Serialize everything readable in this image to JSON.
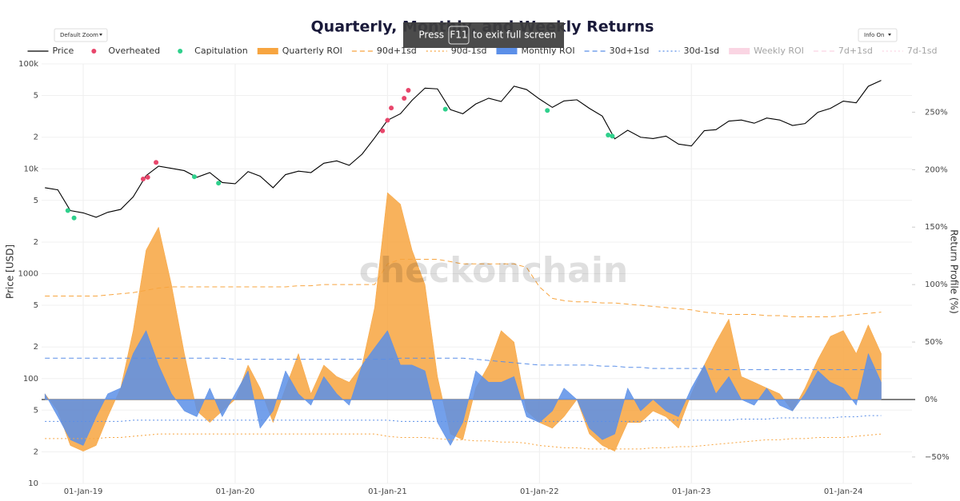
{
  "chart_data": {
    "type": "returns",
    "title": "Quarterly, Monthly, and Weekly Returns",
    "watermark": "checkonchain",
    "ui": {
      "zoom_menu": "Default Zoom",
      "info_menu": "Info On",
      "fullscreen_notice": {
        "before": "Press",
        "key": "F11",
        "after": "to exit full screen"
      }
    },
    "y_label": "Price [USD]",
    "y2_label": "Return Profile (%)",
    "log_y": true,
    "grid": true,
    "xlim": [
      "2018-09-23",
      "2024-06-14"
    ],
    "xticks": [
      {
        "value": "2019-01-01",
        "label": "01-Jan-19"
      },
      {
        "value": "2020-01-01",
        "label": "01-Jan-20"
      },
      {
        "value": "2021-01-01",
        "label": "01-Jan-21"
      },
      {
        "value": "2022-01-01",
        "label": "01-Jan-22"
      },
      {
        "value": "2023-01-01",
        "label": "01-Jan-23"
      },
      {
        "value": "2024-01-01",
        "label": "01-Jan-24"
      }
    ],
    "ylim": [
      10,
      100000
    ],
    "yticks": [
      {
        "value": 100000,
        "label": "100k"
      },
      {
        "value": 50000,
        "label": "5"
      },
      {
        "value": 20000,
        "label": "2"
      },
      {
        "value": 10000,
        "label": "10k"
      },
      {
        "value": 5000,
        "label": "5"
      },
      {
        "value": 2000,
        "label": "2"
      },
      1000,
      {
        "value": 500,
        "label": "5"
      },
      {
        "value": 200,
        "label": "2"
      },
      100,
      {
        "value": 50,
        "label": "5"
      },
      {
        "value": 20,
        "label": "2"
      },
      10
    ],
    "y2lim": [
      -73,
      292
    ],
    "y2ticks": [
      {
        "value": -50,
        "label": "−50%"
      },
      {
        "value": 0,
        "label": "0%"
      },
      {
        "value": 50,
        "label": "50%"
      },
      {
        "value": 100,
        "label": "100%"
      },
      {
        "value": 150,
        "label": "150%"
      },
      {
        "value": 200,
        "label": "200%"
      },
      {
        "value": 250,
        "label": "250%"
      }
    ],
    "x": [
      "2018-10-01",
      "2018-11-01",
      "2018-12-01",
      "2019-01-01",
      "2019-02-01",
      "2019-03-01",
      "2019-04-01",
      "2019-05-01",
      "2019-06-01",
      "2019-07-01",
      "2019-08-01",
      "2019-09-01",
      "2019-10-01",
      "2019-11-01",
      "2019-12-01",
      "2020-01-01",
      "2020-02-01",
      "2020-03-01",
      "2020-04-01",
      "2020-05-01",
      "2020-06-01",
      "2020-07-01",
      "2020-08-01",
      "2020-09-01",
      "2020-10-01",
      "2020-11-01",
      "2020-12-01",
      "2021-01-01",
      "2021-02-01",
      "2021-03-01",
      "2021-04-01",
      "2021-05-01",
      "2021-06-01",
      "2021-07-01",
      "2021-08-01",
      "2021-09-01",
      "2021-10-01",
      "2021-11-01",
      "2021-12-01",
      "2022-01-01",
      "2022-02-01",
      "2022-03-01",
      "2022-04-01",
      "2022-05-01",
      "2022-06-01",
      "2022-07-01",
      "2022-08-01",
      "2022-09-01",
      "2022-10-01",
      "2022-11-01",
      "2022-12-01",
      "2023-01-01",
      "2023-02-01",
      "2023-03-01",
      "2023-04-01",
      "2023-05-01",
      "2023-06-01",
      "2023-07-01",
      "2023-08-01",
      "2023-09-01",
      "2023-10-01",
      "2023-11-01",
      "2023-12-01",
      "2024-01-01",
      "2024-02-01",
      "2024-03-01",
      "2024-04-01"
    ],
    "series": [
      {
        "name": "Price",
        "kind": "line",
        "axis": "y",
        "color": "#000000",
        "values": [
          6600,
          6300,
          4000,
          3800,
          3450,
          3850,
          4100,
          5400,
          8600,
          10600,
          10100,
          9600,
          8300,
          9200,
          7400,
          7200,
          9400,
          8500,
          6600,
          8800,
          9500,
          9200,
          11300,
          11900,
          10800,
          13800,
          19700,
          29000,
          33500,
          45000,
          58800,
          57800,
          36700,
          33500,
          41500,
          47100,
          43800,
          61300,
          57000,
          46300,
          38500,
          44400,
          45500,
          37700,
          31800,
          19300,
          23300,
          20000,
          19400,
          20500,
          17200,
          16500,
          23100,
          23600,
          28500,
          29200,
          27200,
          30500,
          29200,
          25900,
          27000,
          34600,
          37700,
          44200,
          42600,
          61200,
          69700
        ]
      },
      {
        "name": "Overheated",
        "kind": "markers",
        "axis": "y",
        "color": "#e8466b",
        "x": [
          "2019-05-25",
          "2019-06-05",
          "2019-06-25",
          "2020-12-20",
          "2021-01-01",
          "2021-01-10",
          "2021-02-10",
          "2021-02-20"
        ],
        "values": [
          8000,
          8300,
          11500,
          23000,
          29000,
          38000,
          47000,
          56000
        ]
      },
      {
        "name": "Capitulation",
        "kind": "markers",
        "axis": "y",
        "color": "#2fd08c",
        "x": [
          "2018-11-25",
          "2018-12-10",
          "2019-09-25",
          "2019-11-22",
          "2021-05-20",
          "2022-01-20",
          "2022-06-15",
          "2022-06-25"
        ],
        "values": [
          4000,
          3400,
          8400,
          7300,
          37000,
          36000,
          21000,
          20500
        ]
      },
      {
        "name": "Quarterly ROI",
        "kind": "area",
        "axis": "y2",
        "color": "#f7a540",
        "values": [
          5,
          -10,
          -40,
          -45,
          -40,
          -15,
          10,
          60,
          130,
          150,
          100,
          40,
          -10,
          -20,
          -10,
          0,
          30,
          10,
          -20,
          10,
          40,
          5,
          30,
          20,
          15,
          30,
          80,
          180,
          170,
          130,
          100,
          20,
          -30,
          -35,
          10,
          30,
          60,
          50,
          -10,
          -20,
          -25,
          -15,
          0,
          -30,
          -40,
          -45,
          -20,
          -20,
          -10,
          -15,
          -25,
          5,
          30,
          50,
          70,
          20,
          15,
          10,
          5,
          -10,
          10,
          35,
          55,
          60,
          40,
          65,
          40
        ]
      },
      {
        "name": "90d+1sd",
        "kind": "line",
        "dash": "dash",
        "axis": "y2",
        "color": "#f7a540",
        "values": [
          90,
          90,
          90,
          90,
          90,
          91,
          92,
          93,
          95,
          97,
          98,
          98,
          98,
          98,
          98,
          98,
          98,
          98,
          98,
          98,
          99,
          99,
          100,
          100,
          100,
          100,
          100,
          118,
          122,
          122,
          122,
          122,
          120,
          118,
          118,
          118,
          118,
          118,
          115,
          98,
          88,
          86,
          85,
          85,
          84,
          84,
          83,
          82,
          81,
          80,
          79,
          78,
          76,
          75,
          74,
          74,
          74,
          73,
          73,
          72,
          72,
          72,
          72,
          73,
          74,
          75,
          76
        ]
      },
      {
        "name": "90d-1sd",
        "kind": "line",
        "dash": "dot",
        "axis": "y2",
        "color": "#f7a540",
        "values": [
          -34,
          -34,
          -34,
          -34,
          -34,
          -33,
          -33,
          -32,
          -31,
          -30,
          -30,
          -30,
          -30,
          -30,
          -30,
          -30,
          -30,
          -30,
          -30,
          -30,
          -30,
          -30,
          -30,
          -30,
          -30,
          -30,
          -30,
          -32,
          -33,
          -33,
          -33,
          -34,
          -35,
          -35,
          -36,
          -36,
          -37,
          -37,
          -38,
          -40,
          -41,
          -42,
          -42,
          -43,
          -43,
          -43,
          -43,
          -43,
          -42,
          -42,
          -41,
          -41,
          -40,
          -39,
          -38,
          -37,
          -36,
          -35,
          -35,
          -34,
          -34,
          -33,
          -33,
          -33,
          -32,
          -31,
          -30
        ]
      },
      {
        "name": "Monthly ROI",
        "kind": "area",
        "axis": "y2",
        "color": "#5b8fe8",
        "values": [
          5,
          -15,
          -35,
          -40,
          -15,
          5,
          10,
          40,
          60,
          30,
          5,
          -10,
          -15,
          10,
          -15,
          5,
          25,
          -25,
          -10,
          25,
          5,
          -5,
          20,
          5,
          -5,
          30,
          45,
          60,
          30,
          30,
          25,
          -20,
          -40,
          -20,
          25,
          15,
          15,
          20,
          -15,
          -20,
          -10,
          10,
          0,
          -25,
          -35,
          -30,
          10,
          -10,
          0,
          -10,
          -15,
          10,
          30,
          5,
          20,
          0,
          -5,
          10,
          -5,
          -10,
          5,
          25,
          15,
          10,
          -5,
          40,
          15
        ]
      },
      {
        "name": "30d+1sd",
        "kind": "line",
        "dash": "dash",
        "axis": "y2",
        "color": "#5b8fe8",
        "values": [
          36,
          36,
          36,
          36,
          36,
          36,
          36,
          36,
          36,
          36,
          36,
          36,
          36,
          36,
          36,
          35,
          35,
          35,
          35,
          35,
          35,
          35,
          35,
          35,
          35,
          35,
          35,
          35,
          36,
          36,
          36,
          36,
          36,
          36,
          35,
          34,
          33,
          32,
          31,
          30,
          30,
          30,
          30,
          30,
          29,
          29,
          28,
          28,
          27,
          27,
          27,
          27,
          27,
          26,
          26,
          26,
          26,
          26,
          26,
          26,
          26,
          26,
          26,
          26,
          26,
          26,
          26
        ]
      },
      {
        "name": "30d-1sd",
        "kind": "line",
        "dash": "dot",
        "axis": "y2",
        "color": "#5b8fe8",
        "values": [
          -19,
          -19,
          -19,
          -19,
          -19,
          -19,
          -19,
          -18,
          -18,
          -18,
          -18,
          -18,
          -18,
          -18,
          -18,
          -18,
          -18,
          -18,
          -18,
          -18,
          -18,
          -18,
          -18,
          -18,
          -18,
          -18,
          -18,
          -18,
          -19,
          -19,
          -19,
          -19,
          -19,
          -19,
          -19,
          -19,
          -19,
          -19,
          -19,
          -19,
          -19,
          -19,
          -19,
          -19,
          -19,
          -19,
          -19,
          -19,
          -18,
          -18,
          -18,
          -18,
          -18,
          -18,
          -18,
          -17,
          -17,
          -17,
          -16,
          -16,
          -16,
          -16,
          -16,
          -15,
          -15,
          -14,
          -14
        ]
      },
      {
        "name": "Weekly ROI",
        "kind": "area",
        "axis": "y2",
        "color": "#f5a3c2",
        "visible": false
      },
      {
        "name": "7d+1sd",
        "kind": "line",
        "dash": "dash",
        "axis": "y2",
        "color": "#f5a3c2",
        "visible": false
      },
      {
        "name": "7d-1sd",
        "kind": "line",
        "dash": "dot",
        "axis": "y2",
        "color": "#f5a3c2",
        "visible": false
      }
    ]
  }
}
